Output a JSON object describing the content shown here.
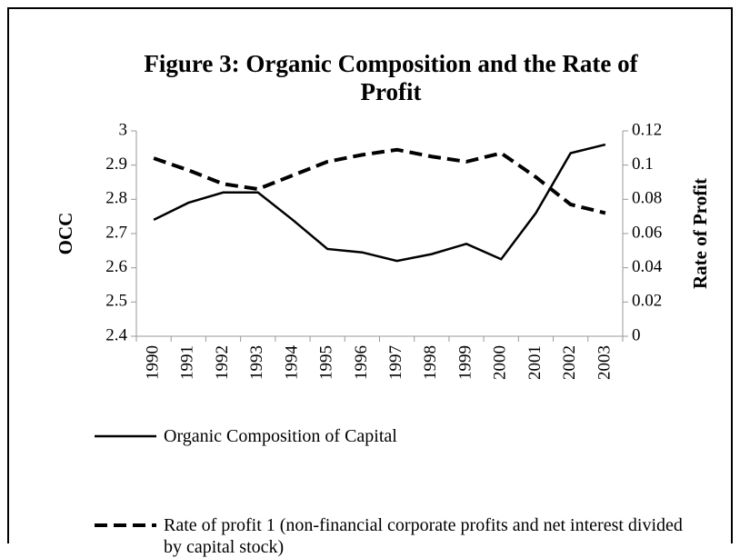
{
  "chart_data": {
    "type": "line",
    "title": "Figure 3: Organic Composition and the Rate of Profit",
    "categories": [
      "1990",
      "1991",
      "1992",
      "1993",
      "1994",
      "1995",
      "1996",
      "1997",
      "1998",
      "1999",
      "2000",
      "2001",
      "2002",
      "2003"
    ],
    "series": [
      {
        "name": "Organic Composition of Capital",
        "color": "#000000",
        "dash": false,
        "values": [
          2.74,
          2.79,
          2.82,
          2.82,
          2.74,
          2.655,
          2.645,
          2.62,
          2.64,
          2.67,
          2.625,
          2.76,
          2.935,
          2.96
        ]
      },
      {
        "name": "Rate of profit 1 (non-financial corporate profits and net interest divided by capital stock)",
        "color": "#000000",
        "dash": true,
        "axis": "y2",
        "values": [
          0.104,
          0.097,
          0.089,
          0.086,
          0.094,
          0.102,
          0.106,
          0.109,
          0.105,
          0.102,
          0.107,
          0.093,
          0.077,
          0.072
        ]
      }
    ],
    "ylabel": "OCC",
    "y2label": "Rate of Profit",
    "ylim": [
      2.4,
      3
    ],
    "yticks": [
      2.4,
      2.5,
      2.6,
      2.7,
      2.8,
      2.9,
      3
    ],
    "y2lim": [
      0,
      0.12
    ],
    "y2ticks": [
      0,
      0.02,
      0.04,
      0.06,
      0.08,
      0.1,
      0.12
    ]
  }
}
